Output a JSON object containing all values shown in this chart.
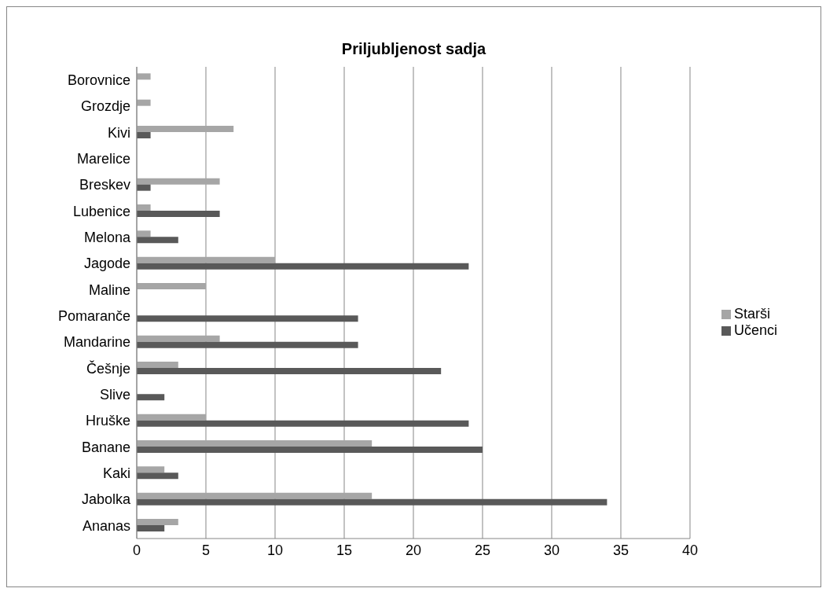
{
  "chart_data": {
    "type": "bar",
    "orientation": "horizontal",
    "title": "Priljubljenost sadja",
    "categories": [
      "Borovnice",
      "Grozdje",
      "Kivi",
      "Marelice",
      "Breskev",
      "Lubenice",
      "Melona",
      "Jagode",
      "Maline",
      "Pomaranče",
      "Mandarine",
      "Češnje",
      "Slive",
      "Hruške",
      "Banane",
      "Kaki",
      "Jabolka",
      "Ananas"
    ],
    "series": [
      {
        "name": "Starši",
        "color": "#a6a6a6",
        "values": [
          1,
          1,
          7,
          0,
          6,
          1,
          1,
          10,
          5,
          0,
          6,
          3,
          0,
          5,
          17,
          2,
          17,
          3
        ]
      },
      {
        "name": "Učenci",
        "color": "#595959",
        "values": [
          0,
          0,
          1,
          0,
          1,
          6,
          3,
          24,
          0,
          16,
          16,
          22,
          2,
          24,
          25,
          3,
          34,
          2
        ]
      }
    ],
    "xlim": [
      0,
      40
    ],
    "xticks": [
      0,
      5,
      10,
      15,
      20,
      25,
      30,
      35,
      40
    ],
    "grid": "x",
    "legend": "right"
  }
}
